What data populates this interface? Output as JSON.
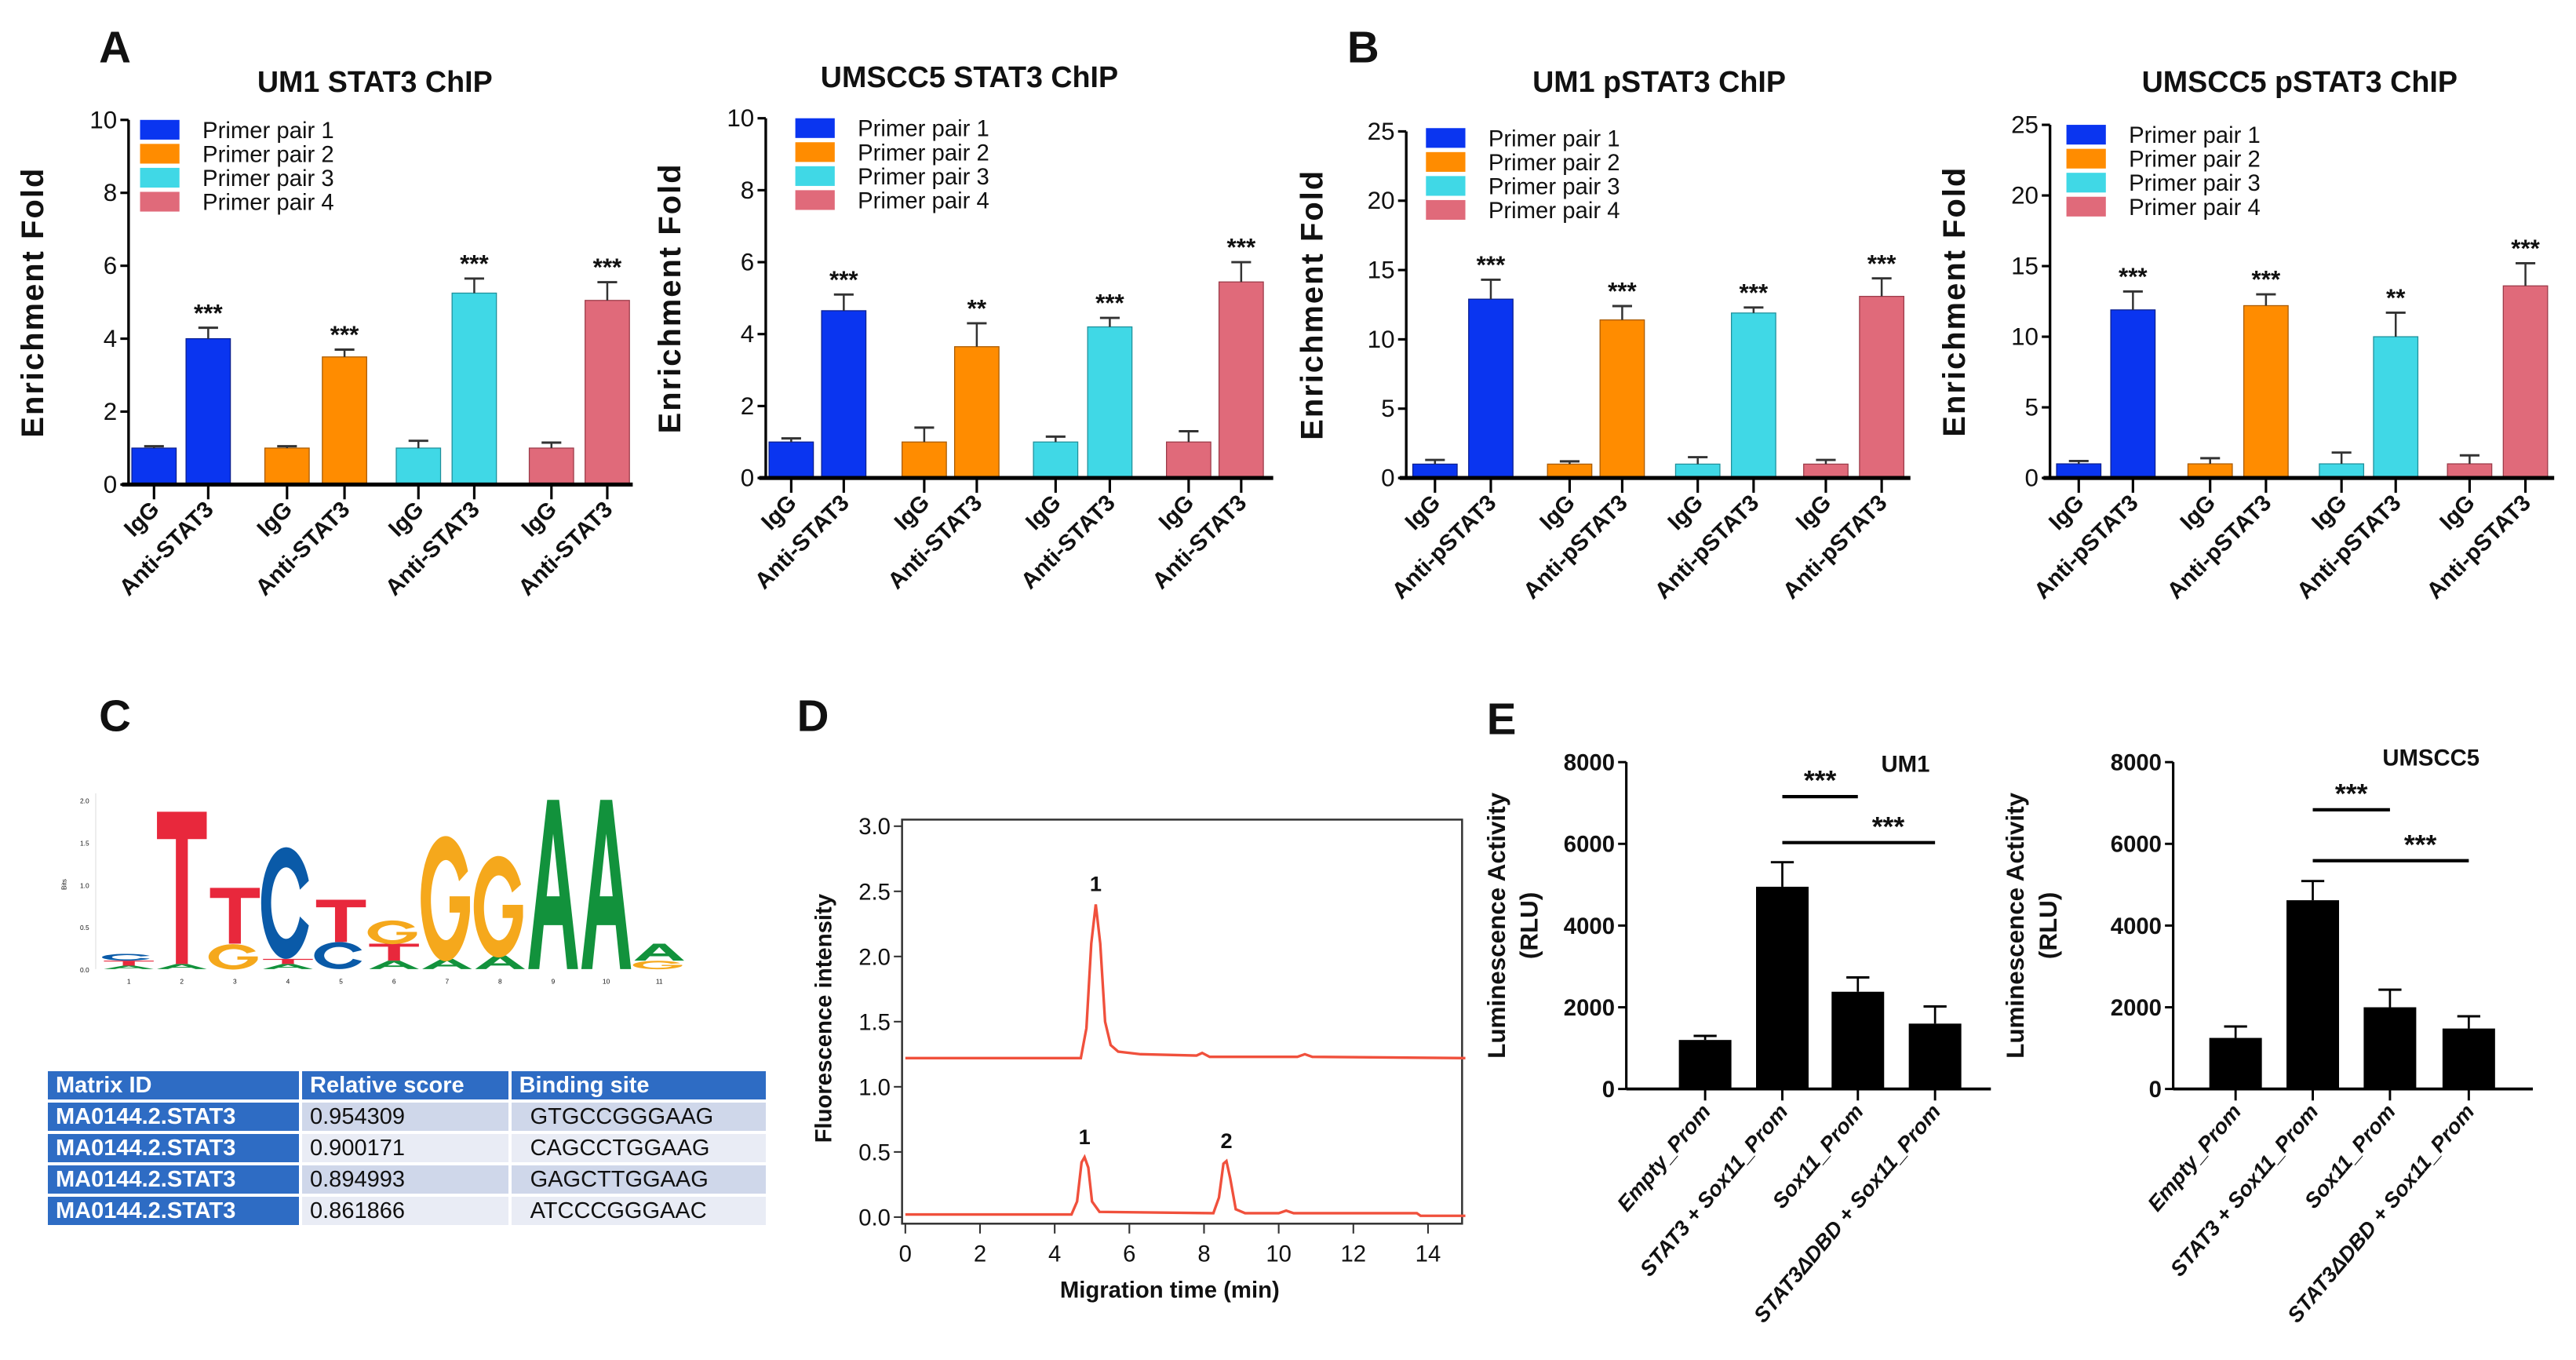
{
  "panel_labels": [
    "A",
    "B",
    "C",
    "D",
    "E"
  ],
  "colors": {
    "pair1": "#0a35f0",
    "pair2": "#ff8c00",
    "pair3": "#40d8e6",
    "pair4": "#e06a7a",
    "trace": "#f0503c",
    "black": "#000000",
    "table_blue": "#2e6cc4"
  },
  "logo": {
    "ylabel": "Bits",
    "yticks": [
      "2.0",
      "1.5",
      "1.0",
      "0.5",
      "0.0"
    ],
    "positions": [
      "1",
      "2",
      "3",
      "4",
      "5",
      "6",
      "7",
      "8",
      "9",
      "10",
      "11"
    ],
    "stacks": [
      [
        [
          "A",
          0.02
        ],
        [
          "T",
          0.03
        ],
        [
          "C",
          0.04
        ]
      ],
      [
        [
          "A",
          0.03
        ],
        [
          "T",
          0.9
        ]
      ],
      [
        [
          "G",
          0.15
        ],
        [
          "T",
          0.33
        ]
      ],
      [
        [
          "A",
          0.03
        ],
        [
          "T",
          0.03
        ],
        [
          "C",
          0.66
        ]
      ],
      [
        [
          "C",
          0.16
        ],
        [
          "T",
          0.25
        ]
      ],
      [
        [
          "A",
          0.05
        ],
        [
          "T",
          0.1
        ],
        [
          "G",
          0.14
        ]
      ],
      [
        [
          "A",
          0.06
        ],
        [
          "G",
          0.74
        ]
      ],
      [
        [
          "A",
          0.08
        ],
        [
          "G",
          0.6
        ]
      ],
      [
        [
          "A",
          1.0
        ]
      ],
      [
        [
          "A",
          1.0
        ]
      ],
      [
        [
          "G",
          0.05
        ],
        [
          "A",
          0.1
        ]
      ]
    ]
  },
  "table": {
    "headers": [
      "Matrix ID",
      "Relative score",
      "Binding site"
    ],
    "rows": [
      [
        "MA0144.2.STAT3",
        "0.954309",
        "GTGCCGGGAAG"
      ],
      [
        "MA0144.2.STAT3",
        "0.900171",
        "CAGCCTGGAAG"
      ],
      [
        "MA0144.2.STAT3",
        "0.894993",
        "GAGCTTGGAAG"
      ],
      [
        "MA0144.2.STAT3",
        "0.861866",
        "ATCCCGGGAAC"
      ]
    ]
  },
  "chart_data": [
    {
      "type": "bar",
      "title": "UM1 STAT3 ChIP",
      "ylabel": "Enrichment Fold",
      "ylim": [
        0,
        10
      ],
      "yticks": [
        "0",
        "2",
        "4",
        "6",
        "8",
        "10"
      ],
      "legend": [
        "Primer pair 1",
        "Primer pair 2",
        "Primer pair 3",
        "Primer pair 4"
      ],
      "x_labels": [
        "IgG",
        "Anti-STAT3"
      ],
      "groups": [
        {
          "igg": 1.0,
          "igg_err": 0.05,
          "anti": 4.0,
          "anti_err": 0.3,
          "sig": "***"
        },
        {
          "igg": 1.0,
          "igg_err": 0.05,
          "anti": 3.5,
          "anti_err": 0.2,
          "sig": "***"
        },
        {
          "igg": 1.0,
          "igg_err": 0.2,
          "anti": 5.25,
          "anti_err": 0.4,
          "sig": "***"
        },
        {
          "igg": 1.0,
          "igg_err": 0.15,
          "anti": 5.05,
          "anti_err": 0.5,
          "sig": "***"
        }
      ]
    },
    {
      "type": "bar",
      "title": "UMSCC5 STAT3 ChIP",
      "ylabel": "Enrichment Fold",
      "ylim": [
        0,
        10
      ],
      "yticks": [
        "0",
        "2",
        "4",
        "6",
        "8",
        "10"
      ],
      "legend": [
        "Primer pair 1",
        "Primer pair 2",
        "Primer pair 3",
        "Primer pair 4"
      ],
      "x_labels": [
        "IgG",
        "Anti-STAT3"
      ],
      "groups": [
        {
          "igg": 1.0,
          "igg_err": 0.1,
          "anti": 4.65,
          "anti_err": 0.45,
          "sig": "***"
        },
        {
          "igg": 1.0,
          "igg_err": 0.4,
          "anti": 3.65,
          "anti_err": 0.65,
          "sig": "**"
        },
        {
          "igg": 1.0,
          "igg_err": 0.15,
          "anti": 4.2,
          "anti_err": 0.25,
          "sig": "***"
        },
        {
          "igg": 1.0,
          "igg_err": 0.3,
          "anti": 5.45,
          "anti_err": 0.55,
          "sig": "***"
        }
      ]
    },
    {
      "type": "bar",
      "title": "UM1 pSTAT3 ChIP",
      "ylabel": "Enrichment Fold",
      "ylim": [
        0,
        25
      ],
      "yticks": [
        "0",
        "5",
        "10",
        "15",
        "20",
        "25"
      ],
      "legend": [
        "Primer pair 1",
        "Primer pair 2",
        "Primer pair 3",
        "Primer pair 4"
      ],
      "x_labels": [
        "IgG",
        "Anti-pSTAT3"
      ],
      "groups": [
        {
          "igg": 1.0,
          "igg_err": 0.3,
          "anti": 12.9,
          "anti_err": 1.4,
          "sig": "***"
        },
        {
          "igg": 1.0,
          "igg_err": 0.2,
          "anti": 11.4,
          "anti_err": 1.0,
          "sig": "***"
        },
        {
          "igg": 1.0,
          "igg_err": 0.5,
          "anti": 11.9,
          "anti_err": 0.4,
          "sig": "***"
        },
        {
          "igg": 1.0,
          "igg_err": 0.3,
          "anti": 13.1,
          "anti_err": 1.3,
          "sig": "***"
        }
      ]
    },
    {
      "type": "bar",
      "title": "UMSCC5 pSTAT3 ChIP",
      "ylabel": "Enrichment Fold",
      "ylim": [
        0,
        25
      ],
      "yticks": [
        "0",
        "5",
        "10",
        "15",
        "20",
        "25"
      ],
      "legend": [
        "Primer pair 1",
        "Primer pair 2",
        "Primer pair 3",
        "Primer pair 4"
      ],
      "x_labels": [
        "IgG",
        "Anti-pSTAT3"
      ],
      "groups": [
        {
          "igg": 1.0,
          "igg_err": 0.2,
          "anti": 11.9,
          "anti_err": 1.3,
          "sig": "***"
        },
        {
          "igg": 1.0,
          "igg_err": 0.4,
          "anti": 12.2,
          "anti_err": 0.8,
          "sig": "***"
        },
        {
          "igg": 1.0,
          "igg_err": 0.8,
          "anti": 10.0,
          "anti_err": 1.7,
          "sig": "**"
        },
        {
          "igg": 1.0,
          "igg_err": 0.6,
          "anti": 13.6,
          "anti_err": 1.6,
          "sig": "***"
        }
      ]
    },
    {
      "type": "line",
      "xlabel": "Migration time (min)",
      "ylabel": "Fluorescence intensity",
      "xlim": [
        0,
        15
      ],
      "ylim": [
        0,
        3
      ],
      "xticks": [
        "0",
        "2",
        "4",
        "6",
        "8",
        "10",
        "12",
        "14"
      ],
      "yticks": [
        "0.0",
        "0.5",
        "1.0",
        "1.5",
        "2.0",
        "2.5",
        "3.0"
      ],
      "series": [
        {
          "name": "upper",
          "points": [
            [
              0,
              1.22
            ],
            [
              4.7,
              1.22
            ],
            [
              4.85,
              1.45
            ],
            [
              4.98,
              2.1
            ],
            [
              5.1,
              2.4
            ],
            [
              5.22,
              2.1
            ],
            [
              5.35,
              1.5
            ],
            [
              5.5,
              1.32
            ],
            [
              5.7,
              1.27
            ],
            [
              6.3,
              1.25
            ],
            [
              7.8,
              1.24
            ],
            [
              7.95,
              1.26
            ],
            [
              8.15,
              1.23
            ],
            [
              10.5,
              1.23
            ],
            [
              10.7,
              1.25
            ],
            [
              10.9,
              1.23
            ],
            [
              15,
              1.22
            ]
          ]
        },
        {
          "name": "lower",
          "points": [
            [
              0,
              0.02
            ],
            [
              4.45,
              0.02
            ],
            [
              4.6,
              0.12
            ],
            [
              4.72,
              0.42
            ],
            [
              4.8,
              0.46
            ],
            [
              4.9,
              0.38
            ],
            [
              5.0,
              0.12
            ],
            [
              5.2,
              0.04
            ],
            [
              8.25,
              0.03
            ],
            [
              8.4,
              0.15
            ],
            [
              8.52,
              0.41
            ],
            [
              8.6,
              0.43
            ],
            [
              8.7,
              0.3
            ],
            [
              8.85,
              0.06
            ],
            [
              9.1,
              0.03
            ],
            [
              10.0,
              0.03
            ],
            [
              10.2,
              0.05
            ],
            [
              10.4,
              0.03
            ],
            [
              13.7,
              0.03
            ],
            [
              13.8,
              0.01
            ],
            [
              15,
              0.01
            ]
          ]
        }
      ],
      "annotations": [
        {
          "label": "1",
          "x": 5.1,
          "y": 2.4
        },
        {
          "label": "1",
          "x": 4.8,
          "y": 0.46
        },
        {
          "label": "2",
          "x": 8.6,
          "y": 0.43
        }
      ]
    },
    {
      "type": "bar",
      "tag": "UM1",
      "ylabel": "Luminescence Activity",
      "ylabel2": "(RLU)",
      "ylim": [
        0,
        8000
      ],
      "yticks": [
        "0",
        "2000",
        "4000",
        "6000",
        "8000"
      ],
      "categories": [
        "Empty_Prom",
        "STAT3 + Sox11_Prom",
        "Sox11_Prom",
        "STAT3ΔDBD + Sox11_Prom"
      ],
      "values": [
        1200,
        4950,
        2380,
        1600
      ],
      "errors": [
        100,
        600,
        350,
        420
      ],
      "comparisons": [
        {
          "from": "STAT3 + Sox11_Prom",
          "to": "Sox11_Prom",
          "label": "***"
        },
        {
          "from": "STAT3 + Sox11_Prom",
          "to": "STAT3ΔDBD + Sox11_Prom",
          "label": "***"
        }
      ]
    },
    {
      "type": "bar",
      "tag": "UMSCC5",
      "ylabel": "Luminescence Activity",
      "ylabel2": "(RLU)",
      "ylim": [
        0,
        8000
      ],
      "yticks": [
        "0",
        "2000",
        "4000",
        "6000",
        "8000"
      ],
      "categories": [
        "Empty_Prom",
        "STAT3 + Sox11_Prom",
        "Sox11_Prom",
        "STAT3ΔDBD + Sox11_Prom"
      ],
      "values": [
        1250,
        4620,
        2000,
        1480
      ],
      "errors": [
        280,
        470,
        430,
        300
      ],
      "comparisons": [
        {
          "from": "STAT3 + Sox11_Prom",
          "to": "Sox11_Prom",
          "label": "***"
        },
        {
          "from": "STAT3 + Sox11_Prom",
          "to": "STAT3ΔDBD + Sox11_Prom",
          "label": "***"
        }
      ]
    }
  ]
}
